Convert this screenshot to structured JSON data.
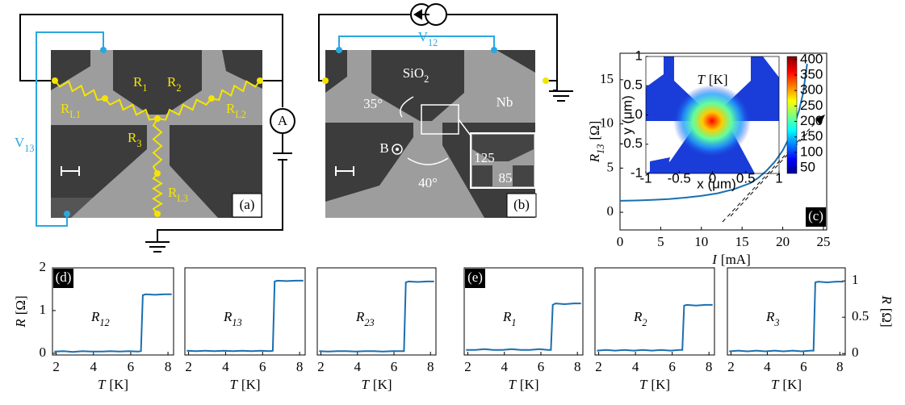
{
  "panel_a": {
    "label": "(a)",
    "resistors": [
      {
        "main": "R",
        "sub": "1"
      },
      {
        "main": "R",
        "sub": "2"
      },
      {
        "main": "R",
        "sub": "L1"
      },
      {
        "main": "R",
        "sub": "L2"
      },
      {
        "main": "R",
        "sub": "3"
      },
      {
        "main": "R",
        "sub": "L3"
      }
    ],
    "voltage": {
      "main": "V",
      "sub": "13"
    },
    "ammeter": "A"
  },
  "panel_b": {
    "label": "(b)",
    "voltage": {
      "main": "V",
      "sub": "12"
    },
    "substrate": {
      "main": "SiO",
      "sub": "2"
    },
    "film": "Nb",
    "angle_top": "35°",
    "angle_bottom": "40°",
    "field": "B",
    "inset_dims": [
      "125",
      "85"
    ]
  },
  "chart_data": [
    {
      "type": "line",
      "panel_label": "(c)",
      "xlabel": {
        "var": "I",
        "unit": "[mA]"
      },
      "ylabel": {
        "var": "R",
        "sub": "13",
        "unit": "[Ω]"
      },
      "x": [
        0,
        2,
        4,
        6,
        8,
        10,
        12,
        14,
        16,
        17,
        18,
        19,
        20,
        21,
        22,
        22.5,
        23
      ],
      "values": [
        1.3,
        1.33,
        1.4,
        1.5,
        1.65,
        1.85,
        2.15,
        2.6,
        3.3,
        3.9,
        4.7,
        5.7,
        7,
        8.8,
        11.5,
        13.5,
        16.8
      ],
      "color": "#1a6fb0",
      "xlim": [
        0,
        25.4
      ],
      "ylim": [
        -2,
        18
      ],
      "xticks": [
        0,
        5,
        10,
        15,
        20,
        25
      ],
      "yticks": [
        0,
        5,
        10,
        15
      ]
    },
    {
      "type": "line",
      "panel_label": "(d)",
      "label": {
        "var": "R",
        "sub": "12"
      },
      "xlabel": {
        "var": "T",
        "unit": "[K]"
      },
      "ylabel": {
        "var": "R",
        "unit": "[Ω]"
      },
      "x": [
        1.9,
        2.4,
        2.9,
        3.4,
        3.9,
        4.4,
        4.9,
        5.4,
        5.9,
        6.4,
        6.55,
        6.65,
        6.8,
        7.3,
        7.8,
        8.2
      ],
      "values": [
        0.04,
        0.05,
        0.03,
        0.05,
        0.04,
        0.04,
        0.05,
        0.04,
        0.05,
        0.04,
        0.05,
        1.36,
        1.38,
        1.37,
        1.38,
        1.38
      ],
      "color": "#1a6fb0",
      "xlim": [
        1.8,
        8.3
      ],
      "ylim": [
        -0.04,
        2
      ],
      "xticks": [
        2,
        4,
        6,
        8
      ],
      "yticks": [
        0,
        1,
        2
      ]
    },
    {
      "type": "line",
      "label": {
        "var": "R",
        "sub": "13"
      },
      "xlabel": {
        "var": "T",
        "unit": "[K]"
      },
      "x": [
        1.9,
        2.4,
        2.9,
        3.4,
        3.9,
        4.4,
        4.9,
        5.4,
        5.9,
        6.4,
        6.55,
        6.65,
        6.8,
        7.3,
        7.8,
        8.2
      ],
      "values": [
        0.06,
        0.05,
        0.06,
        0.05,
        0.06,
        0.05,
        0.06,
        0.05,
        0.06,
        0.05,
        0.06,
        1.68,
        1.7,
        1.69,
        1.7,
        1.7
      ],
      "color": "#1a6fb0",
      "xlim": [
        1.8,
        8.3
      ],
      "ylim": [
        -0.04,
        2
      ],
      "xticks": [
        2,
        4,
        6,
        8
      ]
    },
    {
      "type": "line",
      "label": {
        "var": "R",
        "sub": "23"
      },
      "xlabel": {
        "var": "T",
        "unit": "[K]"
      },
      "x": [
        1.9,
        2.4,
        2.9,
        3.4,
        3.9,
        4.4,
        4.9,
        5.4,
        5.9,
        6.4,
        6.55,
        6.65,
        6.8,
        7.3,
        7.8,
        8.2
      ],
      "values": [
        0.05,
        0.04,
        0.05,
        0.05,
        0.04,
        0.05,
        0.05,
        0.04,
        0.05,
        0.05,
        0.05,
        1.66,
        1.68,
        1.67,
        1.68,
        1.68
      ],
      "color": "#1a6fb0",
      "xlim": [
        1.8,
        8.3
      ],
      "ylim": [
        -0.04,
        2
      ],
      "xticks": [
        2,
        4,
        6,
        8
      ]
    },
    {
      "type": "line",
      "panel_label": "(e)",
      "label": {
        "var": "R",
        "sub": "1"
      },
      "xlabel": {
        "var": "T",
        "unit": "[K]"
      },
      "x": [
        1.9,
        2.4,
        2.9,
        3.4,
        3.9,
        4.4,
        4.9,
        5.4,
        5.9,
        6.4,
        6.55,
        6.65,
        6.8,
        7.3,
        7.8,
        8.2
      ],
      "values": [
        0.05,
        0.05,
        0.06,
        0.05,
        0.05,
        0.06,
        0.05,
        0.05,
        0.06,
        0.05,
        0.05,
        0.67,
        0.69,
        0.68,
        0.69,
        0.69
      ],
      "color": "#1a6fb0",
      "xlim": [
        1.8,
        8.3
      ],
      "ylim": [
        -0.02,
        1.18
      ],
      "xticks": [
        2,
        4,
        6,
        8
      ]
    },
    {
      "type": "line",
      "label": {
        "var": "R",
        "sub": "2"
      },
      "xlabel": {
        "var": "T",
        "unit": "[K]"
      },
      "x": [
        1.9,
        2.4,
        2.9,
        3.4,
        3.9,
        4.4,
        4.9,
        5.4,
        5.9,
        6.4,
        6.55,
        6.65,
        6.8,
        7.3,
        7.8,
        8.2
      ],
      "values": [
        0.04,
        0.05,
        0.04,
        0.05,
        0.04,
        0.05,
        0.04,
        0.05,
        0.04,
        0.05,
        0.05,
        0.66,
        0.67,
        0.66,
        0.67,
        0.67
      ],
      "color": "#1a6fb0",
      "xlim": [
        1.8,
        8.3
      ],
      "ylim": [
        -0.02,
        1.18
      ],
      "xticks": [
        2,
        4,
        6,
        8
      ]
    },
    {
      "type": "line",
      "label": {
        "var": "R",
        "sub": "3"
      },
      "xlabel": {
        "var": "T",
        "unit": "[K]"
      },
      "ylabel": {
        "var": "R",
        "unit": "[Ω]"
      },
      "yaxis": "right",
      "x": [
        1.9,
        2.4,
        2.9,
        3.4,
        3.9,
        4.4,
        4.9,
        5.4,
        5.9,
        6.4,
        6.55,
        6.65,
        6.8,
        7.3,
        7.8,
        8.2
      ],
      "values": [
        0.03,
        0.04,
        0.03,
        0.04,
        0.03,
        0.04,
        0.03,
        0.04,
        0.03,
        0.04,
        0.04,
        0.98,
        0.99,
        0.98,
        0.99,
        0.99
      ],
      "color": "#1a6fb0",
      "xlim": [
        1.8,
        8.3
      ],
      "ylim": [
        -0.02,
        1.18
      ],
      "xticks": [
        2,
        4,
        6,
        8
      ],
      "yticks": [
        0,
        0.5,
        1
      ]
    },
    {
      "type": "heatmap",
      "title": {
        "var": "T",
        "unit": "[K]"
      },
      "xlabel": "x (μm)",
      "ylabel": "y (μm)",
      "xlim": [
        -1,
        1
      ],
      "ylim": [
        -1,
        1
      ],
      "xticks": [
        -1,
        -0.5,
        0,
        0.5,
        1
      ],
      "yticks": [
        -1,
        -0.5,
        0,
        0.5,
        1
      ],
      "clim": [
        32,
        410
      ],
      "cticks": [
        50,
        100,
        150,
        200,
        250,
        300,
        350,
        400
      ]
    }
  ]
}
